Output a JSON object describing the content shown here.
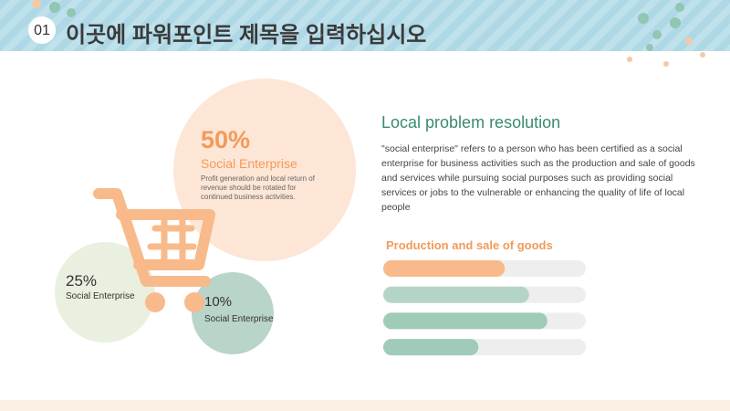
{
  "header": {
    "number": "01",
    "title": "이곳에 파워포인트 제목을 입력하십시오"
  },
  "circles": [
    {
      "percent": "50%",
      "label": "Social Enterprise",
      "description": "Profit generation and local return of revenue should be rotated for continued business activities."
    },
    {
      "percent": "25%",
      "label": "Social Enterprise"
    },
    {
      "percent": "10%",
      "label": "Social Enterprise"
    }
  ],
  "section": {
    "title": "Local problem resolution",
    "body": "\"social enterprise\" refers to a person who has been certified as a social enterprise for business activities such as the production and sale of goods and services while pursuing social purposes such as providing social services or jobs to the vulnerable or enhancing the quality of life of local people",
    "progress_title": "Production and sale of goods",
    "progress": [
      60,
      72,
      81,
      47
    ],
    "progress_colors": [
      "#f8ba8a",
      "#b5d4c8",
      "#9fcbb8",
      "#9fcbb8"
    ]
  }
}
